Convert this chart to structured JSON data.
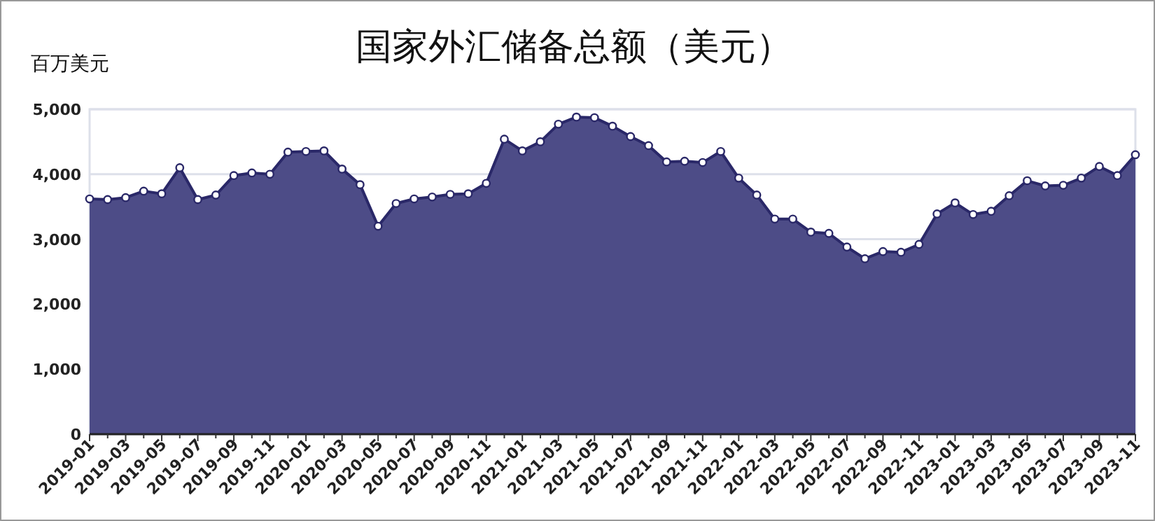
{
  "chart_data": {
    "type": "area",
    "title": "国家外汇储备总额（美元）",
    "ylabel": "百万美元",
    "categories": [
      "2019-01",
      null,
      "2019-03",
      null,
      "2019-05",
      null,
      "2019-07",
      null,
      "2019-09",
      null,
      "2019-11",
      null,
      "2020-01",
      null,
      "2020-03",
      null,
      "2020-05",
      null,
      "2020-07",
      null,
      "2020-09",
      null,
      "2020-11",
      null,
      "2021-01",
      null,
      "2021-03",
      null,
      "2021-05",
      null,
      "2021-07",
      null,
      "2021-09",
      null,
      "2021-11",
      null,
      "2022-01",
      null,
      "2022-03",
      null,
      "2022-05",
      null,
      "2022-07",
      null,
      "2022-09",
      null,
      "2022-11",
      null,
      "2023-01",
      null,
      "2023-03",
      null,
      "2023-05",
      null,
      "2023-07",
      null,
      "2023-09",
      null,
      "2023-11"
    ],
    "series": [
      {
        "color": "#4d4c87",
        "values": [
          3620,
          3610,
          3640,
          3740,
          3700,
          4100,
          3610,
          3680,
          3980,
          4020,
          4000,
          4340,
          4350,
          4360,
          4080,
          3840,
          3200,
          3550,
          3620,
          3650,
          3690,
          3700,
          3860,
          4540,
          4360,
          4500,
          4770,
          4880,
          4870,
          4740,
          4580,
          4440,
          4190,
          4200,
          4180,
          4350,
          3940,
          3680,
          3310,
          3310,
          3110,
          3090,
          2880,
          2700,
          2810,
          2800,
          2920,
          3390,
          3560,
          3380,
          3430,
          3670,
          3900,
          3820,
          3830,
          3940,
          4120,
          3980,
          4300
        ]
      }
    ],
    "ylim": [
      0,
      5000
    ],
    "yticks": [
      {
        "value": 0,
        "label": "0"
      },
      {
        "value": 1000,
        "label": "1,000"
      },
      {
        "value": 2000,
        "label": "2,000"
      },
      {
        "value": 3000,
        "label": "3,000"
      },
      {
        "value": 4000,
        "label": "4,000"
      },
      {
        "value": 5000,
        "label": "5,000"
      }
    ],
    "grid": "y",
    "marker": "circle"
  }
}
